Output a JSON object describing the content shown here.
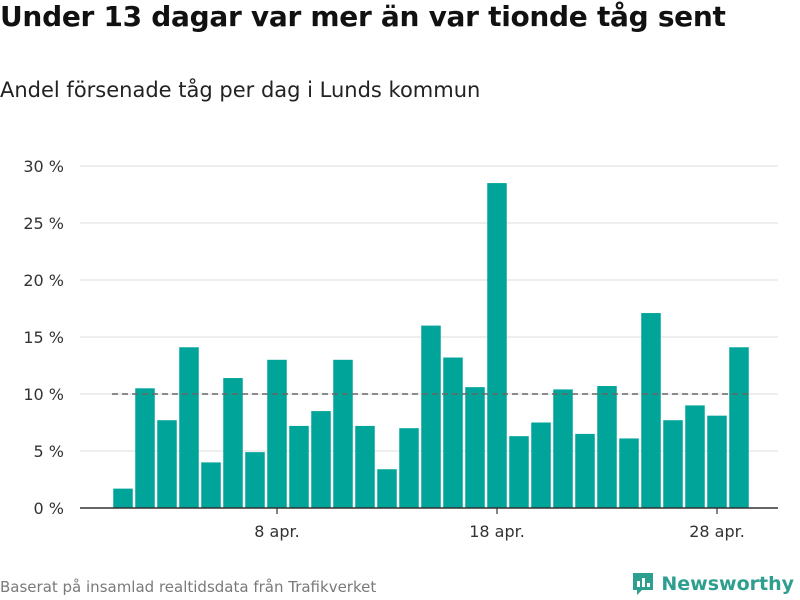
{
  "title": "Under 13 dagar var mer än var tionde tåg sent",
  "subtitle": "Andel försenade tåg per dag i Lunds kommun",
  "footer": {
    "source": "Baserat på insamlad realtidsdata från Trafikverket",
    "brand": "Newsworthy",
    "brand_icon": "bar-chart-logo-icon"
  },
  "colors": {
    "bar": "#00a499",
    "reference_line": "#666666",
    "grid": "#dddddd",
    "brand": "#2e9e8f"
  },
  "chart_data": {
    "type": "bar",
    "title": "Andel försenade tåg per dag i Lunds kommun",
    "x": [
      "2024-04-01",
      "2024-04-02",
      "2024-04-03",
      "2024-04-04",
      "2024-04-05",
      "2024-04-06",
      "2024-04-07",
      "2024-04-08",
      "2024-04-09",
      "2024-04-10",
      "2024-04-11",
      "2024-04-12",
      "2024-04-13",
      "2024-04-14",
      "2024-04-15",
      "2024-04-16",
      "2024-04-17",
      "2024-04-18",
      "2024-04-19",
      "2024-04-20",
      "2024-04-21",
      "2024-04-22",
      "2024-04-23",
      "2024-04-24",
      "2024-04-25",
      "2024-04-26",
      "2024-04-27",
      "2024-04-28",
      "2024-04-29"
    ],
    "values": [
      1.7,
      10.5,
      7.7,
      14.1,
      4.0,
      11.4,
      4.9,
      13.0,
      7.2,
      8.5,
      13.0,
      7.2,
      3.4,
      7.0,
      16.0,
      13.2,
      10.6,
      28.5,
      6.3,
      7.5,
      10.4,
      6.5,
      10.7,
      6.1,
      17.1,
      7.7,
      9.0,
      8.1,
      14.1
    ],
    "reference_line": 10,
    "ylim": [
      0,
      30
    ],
    "y_ticks": [
      0,
      5,
      10,
      15,
      20,
      25,
      30
    ],
    "y_tick_labels": [
      "0 %",
      "5 %",
      "10 %",
      "15 %",
      "20 %",
      "25 %",
      "30 %"
    ],
    "x_ticks": [
      "2024-04-08",
      "2024-04-18",
      "2024-04-28"
    ],
    "x_tick_labels": [
      "8 apr.",
      "18 apr.",
      "28 apr."
    ],
    "xlabel": "",
    "ylabel": "",
    "grid": true,
    "legend": "none"
  }
}
